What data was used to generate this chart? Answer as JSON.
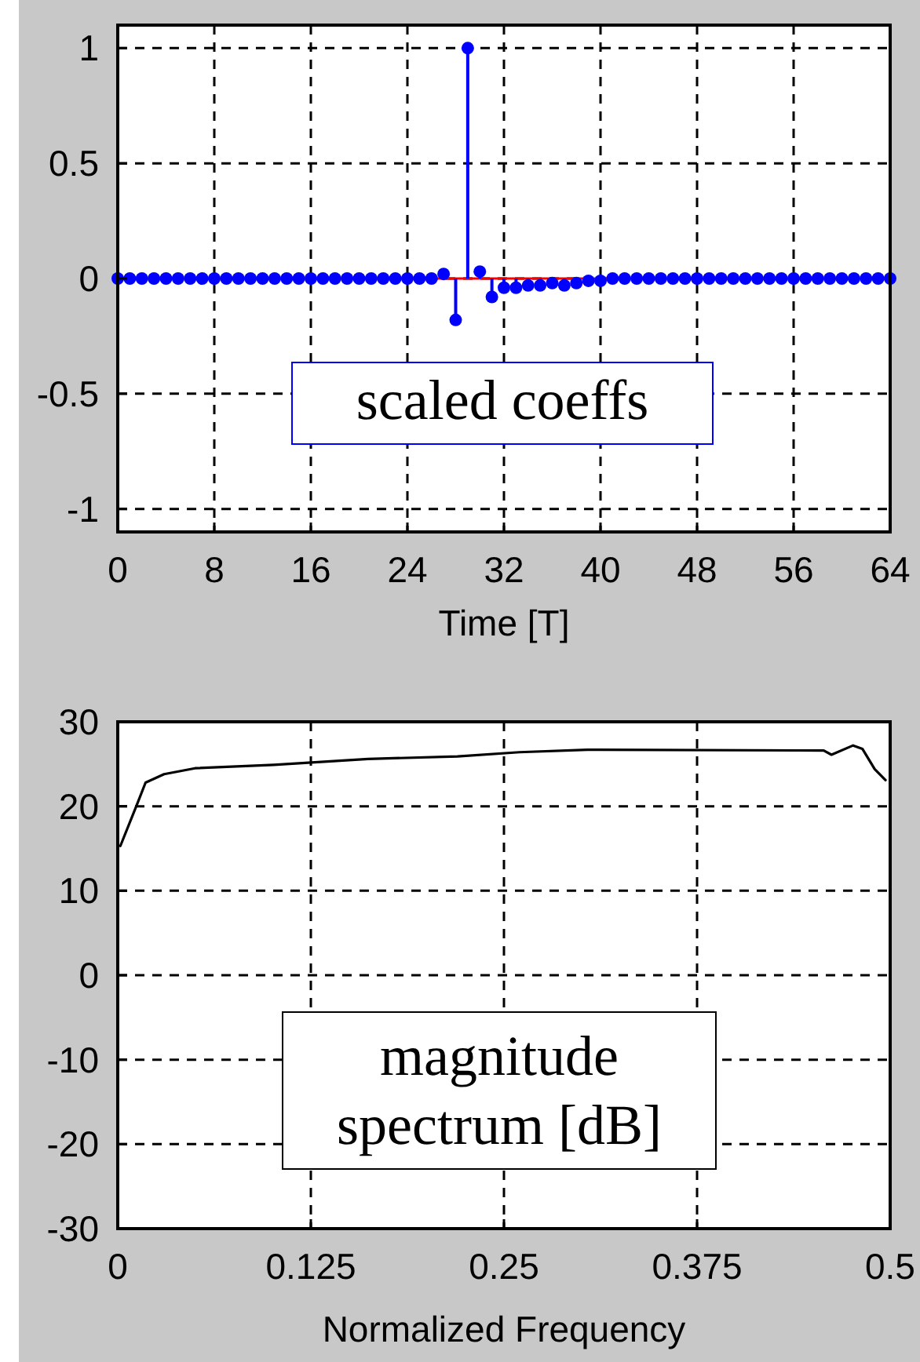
{
  "chart_data": [
    {
      "type": "lollipop",
      "xlabel": "Time [T]",
      "x": [
        0,
        1,
        2,
        3,
        4,
        5,
        6,
        7,
        8,
        9,
        10,
        11,
        12,
        13,
        14,
        15,
        16,
        17,
        18,
        19,
        20,
        21,
        22,
        23,
        24,
        25,
        26,
        27,
        28,
        29,
        30,
        31,
        32,
        33,
        34,
        35,
        36,
        37,
        38,
        39,
        40,
        41,
        42,
        43,
        44,
        45,
        46,
        47,
        48,
        49,
        50,
        51,
        52,
        53,
        54,
        55,
        56,
        57,
        58,
        59,
        60,
        61,
        62,
        63,
        64
      ],
      "series": [
        {
          "color": "#0000ff",
          "values": [
            0,
            0,
            0,
            0,
            0,
            0,
            0,
            0,
            0,
            0,
            0,
            0,
            0,
            0,
            0,
            0,
            0,
            0,
            0,
            0,
            0,
            0,
            0,
            0,
            0,
            0,
            0,
            0.02,
            -0.18,
            1,
            0.03,
            -0.08,
            -0.04,
            -0.04,
            -0.03,
            -0.03,
            -0.02,
            -0.03,
            -0.02,
            -0.01,
            -0.01,
            0,
            0,
            0,
            0,
            0,
            0,
            0,
            0,
            0,
            0,
            0,
            0,
            0,
            0,
            0,
            0,
            0,
            0,
            0,
            0,
            0,
            0,
            0,
            0
          ]
        }
      ],
      "xlim": [
        0,
        64
      ],
      "xticks": [
        0,
        8,
        16,
        24,
        32,
        40,
        48,
        56,
        64
      ],
      "ylim": [
        -1.1,
        1.1
      ],
      "yticks": [
        -1,
        -0.5,
        0,
        0.5,
        1
      ],
      "grid": true,
      "marker": "circle",
      "ref_lines": [
        {
          "axis": "y",
          "value": 0,
          "color": "#ff0000"
        }
      ],
      "annotations": [
        "scaled coeffs"
      ]
    },
    {
      "type": "line",
      "xlabel": "Normalized Frequency",
      "x": [
        0.0017,
        0.012,
        0.018,
        0.03,
        0.05,
        0.101,
        0.162,
        0.22,
        0.26,
        0.304,
        0.457,
        0.462,
        0.476,
        0.482,
        0.49,
        0.497
      ],
      "series": [
        {
          "color": "#000000",
          "values": [
            15.3,
            20,
            22.8,
            23.8,
            24.5,
            24.9,
            25.6,
            25.9,
            26.4,
            26.7,
            26.6,
            26.1,
            27.2,
            26.8,
            24.4,
            23.1
          ]
        }
      ],
      "xlim": [
        0,
        0.5
      ],
      "xticks": [
        0,
        {
          "value": 0.125,
          "label": "0.125"
        },
        {
          "value": 0.25,
          "label": "0.25"
        },
        {
          "value": 0.375,
          "label": "0.375"
        },
        {
          "value": 0.5,
          "label": "0.5"
        }
      ],
      "ylim": [
        -30,
        30
      ],
      "yticks": [
        -30,
        -20,
        -10,
        0,
        10,
        20,
        30
      ],
      "grid": true,
      "marker": "none",
      "line_style": "solid",
      "annotations": [
        "magnitude spectrum [dB]"
      ]
    }
  ]
}
